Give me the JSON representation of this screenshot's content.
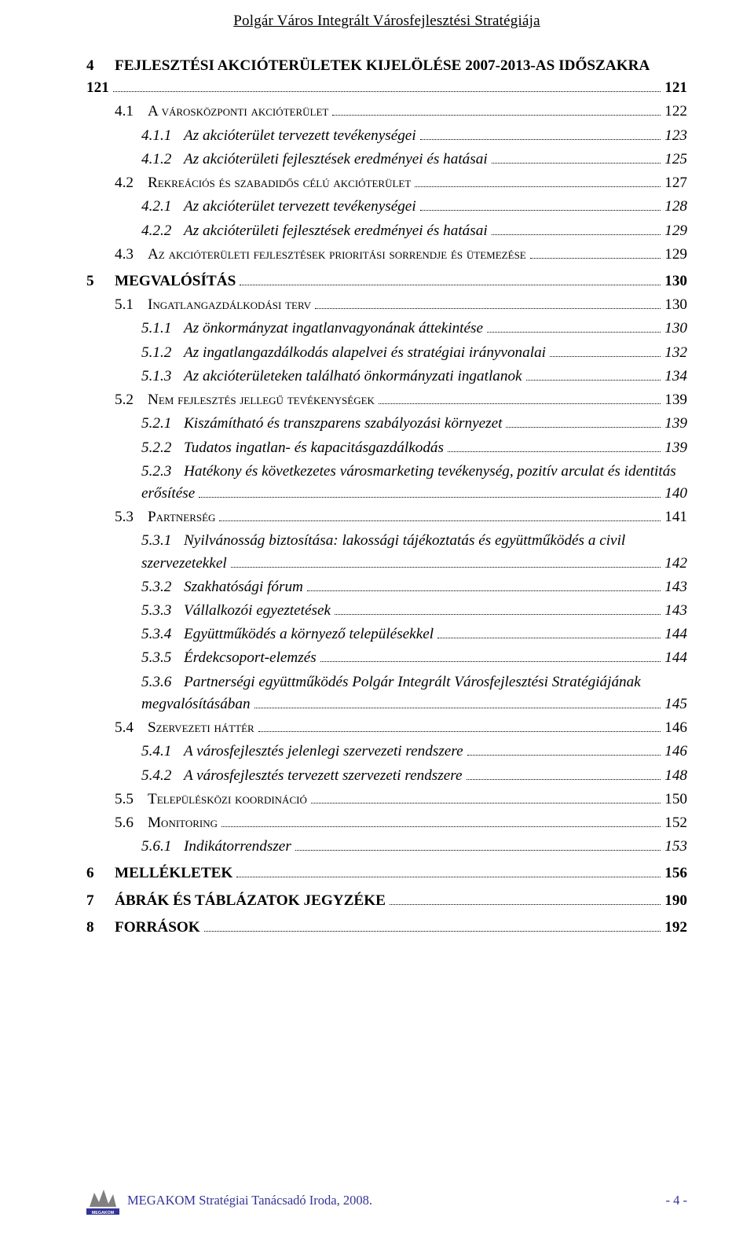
{
  "header_title": "Polgár Város Integrált Városfejlesztési Stratégiája",
  "toc": [
    {
      "level": 1,
      "num": "4",
      "label": "FEJLESZTÉSI AKCIÓTERÜLETEK KIJELÖLÉSE 2007-2013-AS IDŐSZAKRA",
      "page": "121",
      "multiline": true,
      "cont": "121"
    },
    {
      "level": 2,
      "num": "4.1",
      "label": "A városközponti akcióterület",
      "page": "122"
    },
    {
      "level": 3,
      "num": "4.1.1",
      "label": "Az akcióterület tervezett tevékenységei",
      "page": "123"
    },
    {
      "level": 3,
      "num": "4.1.2",
      "label": "Az akcióterületi fejlesztések eredményei és hatásai",
      "page": "125"
    },
    {
      "level": 2,
      "num": "4.2",
      "label": "Rekreációs és szabadidős célú akcióterület",
      "page": "127"
    },
    {
      "level": 3,
      "num": "4.2.1",
      "label": "Az akcióterület tervezett tevékenységei",
      "page": "128"
    },
    {
      "level": 3,
      "num": "4.2.2",
      "label": "Az akcióterületi fejlesztések eredményei és hatásai",
      "page": "129"
    },
    {
      "level": 2,
      "num": "4.3",
      "label": "Az akcióterületi fejlesztések prioritási sorrendje és ütemezése",
      "page": "129"
    },
    {
      "level": 1,
      "num": "5",
      "label": "MEGVALÓSÍTÁS",
      "page": "130"
    },
    {
      "level": 2,
      "num": "5.1",
      "label": "Ingatlangazdálkodási terv",
      "page": "130"
    },
    {
      "level": 3,
      "num": "5.1.1",
      "label": "Az önkormányzat ingatlanvagyonának áttekintése",
      "page": "130"
    },
    {
      "level": 3,
      "num": "5.1.2",
      "label": "Az ingatlangazdálkodás alapelvei és stratégiai irányvonalai",
      "page": "132"
    },
    {
      "level": 3,
      "num": "5.1.3",
      "label": "Az akcióterületeken található önkormányzati ingatlanok",
      "page": "134"
    },
    {
      "level": 2,
      "num": "5.2",
      "label": "Nem fejlesztés jellegű tevékenységek",
      "page": "139"
    },
    {
      "level": 3,
      "num": "5.2.1",
      "label": "Kiszámítható és transzparens szabályozási környezet",
      "page": "139"
    },
    {
      "level": 3,
      "num": "5.2.2",
      "label": "Tudatos ingatlan- és kapacitásgazdálkodás",
      "page": "139"
    },
    {
      "level": 3,
      "num": "5.2.3",
      "label": "Hatékony és következetes városmarketing tevékenység, pozitív arculat és identitás",
      "page": "140",
      "multiline": true,
      "cont": "erősítése"
    },
    {
      "level": 2,
      "num": "5.3",
      "label": "Partnerség",
      "page": "141"
    },
    {
      "level": 3,
      "num": "5.3.1",
      "label": "Nyilvánosság biztosítása: lakossági tájékoztatás és együttműködés a civil",
      "page": "142",
      "multiline": true,
      "cont": "szervezetekkel"
    },
    {
      "level": 3,
      "num": "5.3.2",
      "label": "Szakhatósági fórum",
      "page": "143"
    },
    {
      "level": 3,
      "num": "5.3.3",
      "label": "Vállalkozói egyeztetések",
      "page": "143"
    },
    {
      "level": 3,
      "num": "5.3.4",
      "label": "Együttműködés a környező településekkel",
      "page": "144"
    },
    {
      "level": 3,
      "num": "5.3.5",
      "label": "Érdekcsoport-elemzés",
      "page": "144"
    },
    {
      "level": 3,
      "num": "5.3.6",
      "label": "Partnerségi együttműködés Polgár Integrált Városfejlesztési Stratégiájának",
      "page": "145",
      "multiline": true,
      "cont": "megvalósításában"
    },
    {
      "level": 2,
      "num": "5.4",
      "label": "Szervezeti háttér",
      "page": "146"
    },
    {
      "level": 3,
      "num": "5.4.1",
      "label": "A városfejlesztés jelenlegi szervezeti rendszere",
      "page": "146"
    },
    {
      "level": 3,
      "num": "5.4.2",
      "label": "A városfejlesztés tervezett szervezeti rendszere",
      "page": "148"
    },
    {
      "level": 2,
      "num": "5.5",
      "label": "Településközi koordináció",
      "page": "150"
    },
    {
      "level": 2,
      "num": "5.6",
      "label": "Monitoring",
      "page": "152"
    },
    {
      "level": 3,
      "num": "5.6.1",
      "label": "Indikátorrendszer",
      "page": "153"
    },
    {
      "level": 1,
      "num": "6",
      "label": "MELLÉKLETEK",
      "page": "156"
    },
    {
      "level": 1,
      "num": "7",
      "label": "ÁBRÁK ÉS TÁBLÁZATOK JEGYZÉKE",
      "page": "190"
    },
    {
      "level": 1,
      "num": "8",
      "label": "FORRÁSOK",
      "page": "192"
    }
  ],
  "footer_text": "MEGAKOM Stratégiai Tanácsadó Iroda, 2008.",
  "footer_page_label": "- 4 -",
  "colors": {
    "text": "#000000",
    "footer_text": "#333399",
    "logo_gray": "#808080",
    "logo_blue": "#333399",
    "background": "#ffffff"
  },
  "typography": {
    "font_family": "Times New Roman",
    "header_fontsize_pt": 14,
    "toc_fontsize_pt": 14.5,
    "footer_fontsize_pt": 12.5
  }
}
